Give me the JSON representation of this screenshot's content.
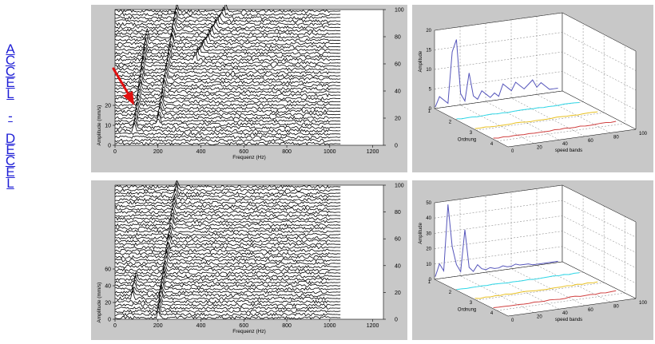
{
  "side_label": {
    "chars": [
      "A",
      "C",
      "C",
      "E",
      "L",
      "",
      "-",
      "",
      "D",
      "E",
      "C",
      "E",
      "L"
    ],
    "color": "#1f1fd6"
  },
  "colors": {
    "panel_bg": "#c8c8c8",
    "arrow": "#e01010",
    "spectrum_line": "#5555bb",
    "cyan_trace": "#30d8e8",
    "yellow_trace": "#e8c020",
    "red_trace": "#d04040"
  },
  "chart_data": [
    {
      "type": "heatmap",
      "id": "accel-waterfall",
      "title": "",
      "xlabel": "Frequenz (Hz)",
      "ylabel": "Amplitude (mm/s)",
      "x_ticks": [
        "0",
        "200",
        "400",
        "600",
        "800",
        "1000",
        "1200"
      ],
      "xlim": [
        0,
        1250
      ],
      "y_ticks": [
        "0",
        "10",
        "20"
      ],
      "right_ticks": [
        "0",
        "20",
        "40",
        "60",
        "80",
        "100"
      ],
      "right_lim": [
        0,
        100
      ],
      "ridges": [
        {
          "label_hz": [
            90,
            150
          ],
          "level_range": [
            10,
            80
          ]
        },
        {
          "label_hz": [
            200,
            290
          ],
          "level_range": [
            14,
            100
          ]
        },
        {
          "label_hz": [
            370,
            520
          ],
          "level_range": [
            62,
            100
          ]
        }
      ],
      "annotation": "red arrow"
    },
    {
      "type": "heatmap",
      "id": "decel-waterfall",
      "title": "",
      "xlabel": "Frequenz (Hz)",
      "ylabel": "Amplitude (mm/s)",
      "x_ticks": [
        "0",
        "200",
        "400",
        "600",
        "800",
        "1000",
        "1200"
      ],
      "xlim": [
        0,
        1250
      ],
      "y_ticks": [
        "0",
        "20",
        "40",
        "60"
      ],
      "right_ticks": [
        "0",
        "20",
        "40",
        "60",
        "80",
        "100"
      ],
      "right_lim": [
        0,
        100
      ],
      "ridges": [
        {
          "label_hz": [
            80,
            100
          ],
          "level_range": [
            14,
            30
          ]
        },
        {
          "label_hz": [
            200,
            290
          ],
          "level_range": [
            0,
            100
          ]
        }
      ]
    },
    {
      "type": "line",
      "id": "accel-3d",
      "title": "",
      "zlabel": "Amplitude",
      "xlabel": "Ordnung",
      "ylabel": "speed bands",
      "z_ticks": [
        "0",
        "5",
        "10",
        "15",
        "20"
      ],
      "zlim": [
        0,
        20
      ],
      "order_ticks": [
        "1",
        "2",
        "3",
        "4"
      ],
      "band_ticks": [
        "0",
        "20",
        "40",
        "60",
        "80",
        "100"
      ],
      "series": [
        {
          "color": "blue",
          "values": [
            0.5,
            3,
            2,
            1,
            14,
            17,
            3,
            1,
            8,
            2,
            1,
            3,
            2,
            1,
            2,
            1,
            4,
            3,
            2,
            4,
            3,
            2,
            3,
            4,
            2,
            3,
            2,
            1,
            1,
            1
          ]
        }
      ]
    },
    {
      "type": "line",
      "id": "decel-3d",
      "title": "",
      "zlabel": "Amplitude",
      "xlabel": "Ordnung",
      "ylabel": "speed bands",
      "z_ticks": [
        "0",
        "10",
        "20",
        "30",
        "40",
        "50"
      ],
      "zlim": [
        0,
        50
      ],
      "order_ticks": [
        "1",
        "2",
        "3",
        "4"
      ],
      "band_ticks": [
        "0",
        "20",
        "40",
        "60",
        "80",
        "100"
      ],
      "series": [
        {
          "color": "blue",
          "values": [
            2,
            10,
            5,
            48,
            20,
            8,
            3,
            30,
            5,
            2,
            6,
            3,
            2,
            3,
            2,
            2,
            3,
            2,
            2,
            3,
            2,
            2,
            2,
            1,
            1,
            1,
            1,
            1,
            1,
            1
          ]
        }
      ]
    }
  ]
}
